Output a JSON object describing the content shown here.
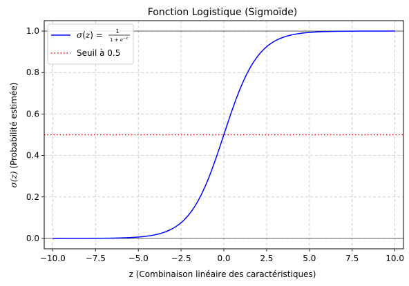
{
  "chart_data": {
    "type": "line",
    "title": "Fonction Logistique (Sigmoïde)",
    "xlabel": "z (Combinaison linéaire des caractéristiques)",
    "ylabel": "σ(z) (Probabilité estimée)",
    "xlim": [
      -10.5,
      10.5
    ],
    "ylim": [
      -0.05,
      1.05
    ],
    "xticks": [
      -10.0,
      -7.5,
      -5.0,
      -2.5,
      0.0,
      2.5,
      5.0,
      7.5,
      10.0
    ],
    "xtick_labels": [
      "−10.0",
      "−7.5",
      "−5.0",
      "−2.5",
      "0.0",
      "2.5",
      "5.0",
      "7.5",
      "10.0"
    ],
    "yticks": [
      0.0,
      0.2,
      0.4,
      0.6,
      0.8,
      1.0
    ],
    "ytick_labels": [
      "0.0",
      "0.2",
      "0.4",
      "0.6",
      "0.8",
      "1.0"
    ],
    "grid": true,
    "legend_position": "top-left",
    "reference_lines_y": [
      0,
      1
    ],
    "series": [
      {
        "name": "σ(z) = 1 / (1 + e^−z)",
        "color": "#0000ff",
        "style": "solid",
        "x_range": [
          -10,
          10
        ],
        "function": "logistic",
        "x": [
          -10,
          -8,
          -6,
          -5,
          -4,
          -3,
          -2,
          -1,
          0,
          1,
          2,
          3,
          4,
          5,
          6,
          8,
          10
        ],
        "y": [
          0.0,
          0.0003,
          0.0025,
          0.0067,
          0.018,
          0.047,
          0.119,
          0.269,
          0.5,
          0.731,
          0.881,
          0.953,
          0.982,
          0.993,
          0.998,
          0.9997,
          1.0
        ]
      },
      {
        "name": "Seuil à 0.5",
        "color": "#ff0000",
        "style": "dotted",
        "y_value": 0.5
      }
    ]
  }
}
